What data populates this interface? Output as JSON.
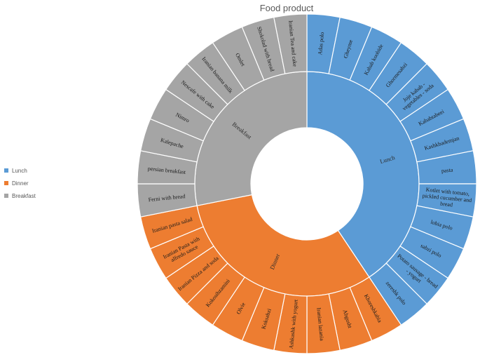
{
  "chart_data": {
    "type": "sunburst",
    "title": "Food product",
    "legend_position": "left",
    "start_angle_deg": 0,
    "direction": "clockwise",
    "groups": [
      {
        "name": "Lunch",
        "color": "#5B9BD5",
        "items": [
          "Adas polo",
          "Gheyme",
          "Kabab koobide",
          "Ghormesabzi",
          "Joje kabab - vegetables - soda",
          "Kababtabeei",
          "Kashkbademjan",
          "pasta",
          "Kotlet with tomato, pickled cucumber and bread",
          "lobia polo",
          "sabzi polo",
          "Potato sausage - bread - yogurt",
          "zereshk polo"
        ]
      },
      {
        "name": "Dinner",
        "color": "#ED7D31",
        "items": [
          "Khoreshkabia",
          "Abgusht",
          "Iranian lazania",
          "Ashkashk with yogurt",
          "Koksabzi",
          "Olvie",
          "Kokosibzamini",
          "Iranian Pizza and soda",
          "Iranian Pasta with alfredo sauce",
          "Iranian pasta salad"
        ]
      },
      {
        "name": "Breakfast",
        "color": "#A5A5A5",
        "items": [
          "Ferni with bread",
          "persian breakfast",
          "Kalepache",
          "Nimro",
          "Nescafe with cake",
          "Iranian banana milk",
          "Omlet",
          "Shokolad with bread",
          "Iranian Tea and cake"
        ]
      }
    ]
  }
}
